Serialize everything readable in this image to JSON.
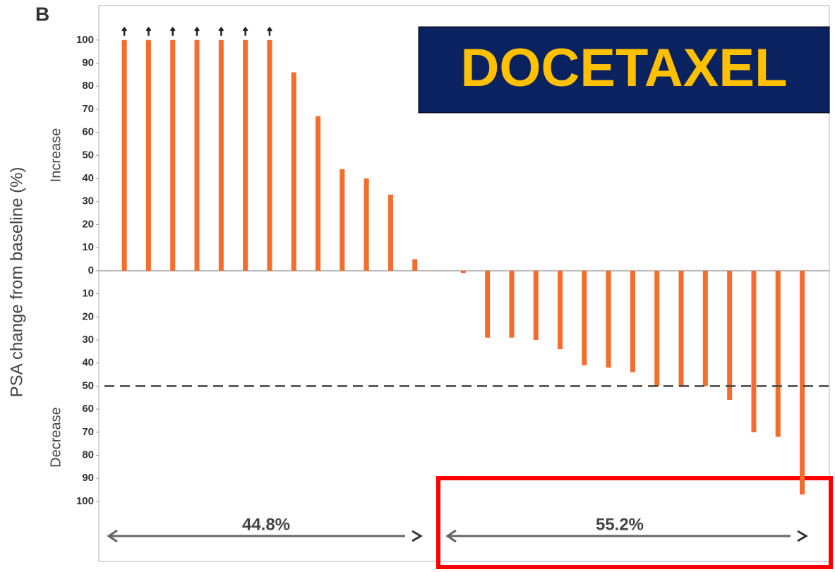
{
  "chart_data": {
    "type": "bar",
    "panel_label": "B",
    "ylabel": "PSA change from baseline (%)",
    "axis_annotations": [
      "Increase",
      "Decrease"
    ],
    "badge": "DOCETAXEL",
    "values": [
      100,
      100,
      100,
      100,
      100,
      100,
      100,
      86,
      67,
      44,
      40,
      33,
      5,
      0,
      -1,
      -29,
      -29,
      -30,
      -34,
      -41,
      -42,
      -44,
      -50,
      -50,
      -50,
      -56,
      -70,
      -72,
      -97
    ],
    "color": "#f56c2c",
    "over_range_marker_indices": [
      0,
      1,
      2,
      3,
      4,
      5,
      6
    ],
    "reference_line": -50,
    "ylim": [
      -126,
      114
    ],
    "yticks": [
      100,
      90,
      80,
      70,
      60,
      50,
      40,
      30,
      20,
      10,
      0,
      {
        "value": -10,
        "label": "10"
      },
      {
        "value": -20,
        "label": "20"
      },
      {
        "value": -30,
        "label": "30"
      },
      {
        "value": -40,
        "label": "40"
      },
      {
        "value": -50,
        "label": "50"
      },
      {
        "value": -60,
        "label": "60"
      },
      {
        "value": -70,
        "label": "70"
      },
      {
        "value": -80,
        "label": "80"
      },
      {
        "value": -90,
        "label": "90"
      },
      {
        "value": -100,
        "label": "100"
      }
    ],
    "group_labels": [
      "44.8%",
      "55.2%"
    ]
  }
}
